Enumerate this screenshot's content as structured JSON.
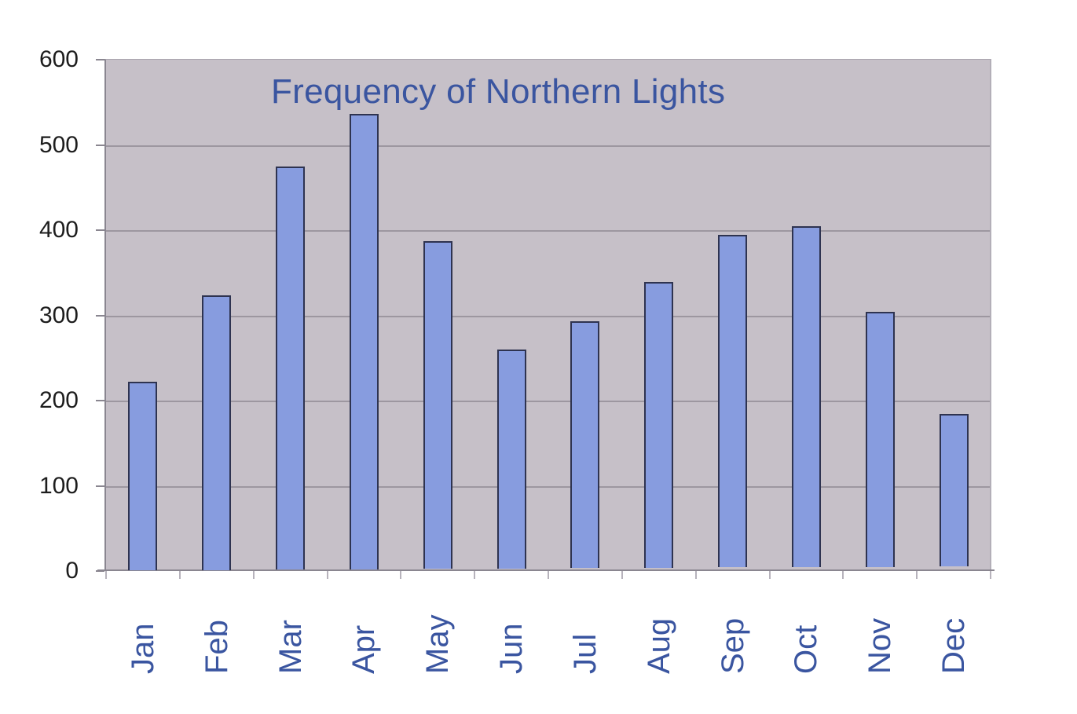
{
  "chart_data": {
    "type": "bar",
    "title": "Frequency of Northern Lights",
    "xlabel": "",
    "ylabel": "",
    "categories": [
      "Jan",
      "Feb",
      "Mar",
      "Apr",
      "May",
      "Jun",
      "Jul",
      "Aug",
      "Sep",
      "Oct",
      "Nov",
      "Dec"
    ],
    "values": [
      222,
      323,
      474,
      535,
      385,
      258,
      291,
      336,
      391,
      401,
      300,
      180
    ],
    "ylim": [
      0,
      600
    ],
    "yticks": [
      0,
      100,
      200,
      300,
      400,
      500,
      600
    ],
    "grid": true,
    "legend": "none",
    "colors": {
      "bar_fill": "#879cdf",
      "bar_border": "#2e3350",
      "plot_background": "#c6c0c8",
      "title": "#3a55a0",
      "x_labels": "#3a55a0"
    }
  },
  "title": "Frequency of Northern Lights",
  "y_axis": {
    "ticks": [
      "0",
      "100",
      "200",
      "300",
      "400",
      "500",
      "600"
    ]
  },
  "x_axis": {
    "labels": [
      "Jan",
      "Feb",
      "Mar",
      "Apr",
      "May",
      "Jun",
      "Jul",
      "Aug",
      "Sep",
      "Oct",
      "Nov",
      "Dec"
    ]
  }
}
